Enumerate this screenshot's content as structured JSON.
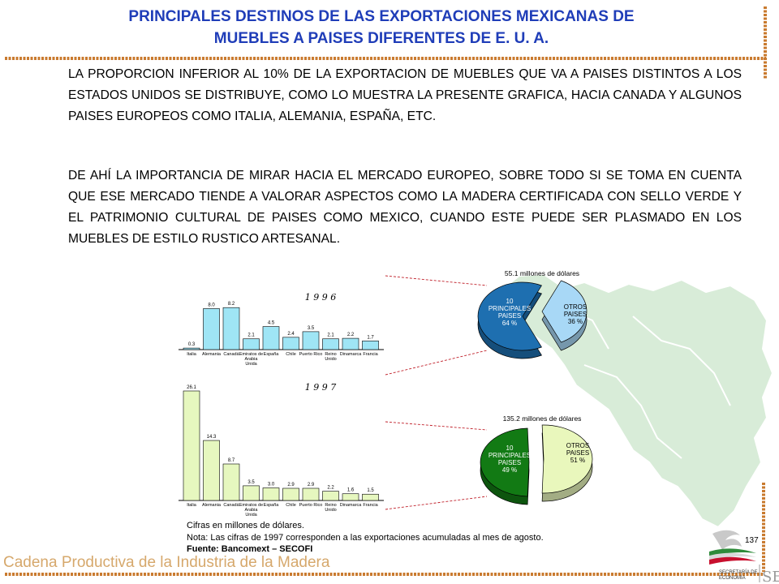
{
  "title": {
    "line1": "PRINCIPALES DESTINOS DE LAS EXPORTACIONES MEXICANAS DE",
    "line2": "MUEBLES A PAISES DIFERENTES DE  E. U. A."
  },
  "paragraphs": {
    "p1": "LA PROPORCION INFERIOR AL 10% DE LA EXPORTACION DE MUEBLES QUE VA A PAISES DISTINTOS A LOS ESTADOS UNIDOS SE DISTRIBUYE, COMO LO MUESTRA LA PRESENTE GRAFICA, HACIA CANADA Y ALGUNOS PAISES EUROPEOS COMO ITALIA, ALEMANIA, ESPAÑA, ETC.",
    "p2": "DE AHÍ LA IMPORTANCIA DE MIRAR HACIA EL MERCADO EUROPEO, SOBRE TODO SI SE TOMA EN CUENTA QUE ESE MERCADO TIENDE A VALORAR ASPECTOS COMO LA MADERA CERTIFICADA CON SELLO VERDE Y EL PATRIMONIO CULTURAL DE PAISES COMO MEXICO, CUANDO ESTE PUEDE SER PLASMADO EN LOS MUEBLES DE ESTILO RUSTICO ARTESANAL."
  },
  "chart_data": [
    {
      "type": "bar",
      "title": "1 9 9 6",
      "categories": [
        "Italia",
        "Alemania",
        "Canadá",
        "Emiratos de Arabia Unida",
        "España",
        "Chile",
        "Puerto Rico",
        "Reino Unido",
        "Dinamarca",
        "Francia"
      ],
      "category_lines": [
        [
          "Italia"
        ],
        [
          "Alemania"
        ],
        [
          "Canadá"
        ],
        [
          "Emiratos de",
          "Arabia",
          "Unida"
        ],
        [
          "España"
        ],
        [
          "Chile"
        ],
        [
          "Puerto Rico"
        ],
        [
          "Reino",
          "Unido"
        ],
        [
          "Dinamarca"
        ],
        [
          "Francia"
        ]
      ],
      "values": [
        0.3,
        8.0,
        8.2,
        2.1,
        4.5,
        2.4,
        3.5,
        2.1,
        2.2,
        1.7
      ],
      "value_labels": [
        "0.3",
        "8.0",
        "8.2",
        "2.1",
        "4.5",
        "2.4",
        "3.5",
        "2.1",
        "2.2",
        "1.7"
      ],
      "ylim": [
        0,
        9.5
      ],
      "bar_color": "#9fe5f5"
    },
    {
      "type": "bar",
      "title": "1 9 9 7",
      "categories": [
        "Italia",
        "Alemania",
        "Canadá",
        "Emiratos de Arabia Unida",
        "España",
        "Chile",
        "Puerto Rico",
        "Reino Unido",
        "Dinamarca",
        "Francia"
      ],
      "category_lines": [
        [
          "Italia"
        ],
        [
          "Alemania"
        ],
        [
          "Canadá"
        ],
        [
          "Emiratos de",
          "Arabia",
          "Unida"
        ],
        [
          "España"
        ],
        [
          "Chile"
        ],
        [
          "Puerto Rico"
        ],
        [
          "Reino",
          "Unido"
        ],
        [
          "Dinamarca"
        ],
        [
          "Francia"
        ]
      ],
      "values": [
        26.1,
        14.3,
        8.7,
        3.5,
        3.0,
        2.9,
        2.9,
        2.2,
        1.6,
        1.5
      ],
      "value_labels": [
        "26.1",
        "14.3",
        "8.7",
        "3.5",
        "3.0",
        "2.9",
        "2.9",
        "2.2",
        "1.6",
        "1.5"
      ],
      "ylim": [
        0,
        26.1
      ],
      "bar_color": "#e6f7bf"
    },
    {
      "type": "pie",
      "title": "55.1 millones de dólares",
      "slices": [
        {
          "label_lines": [
            "10",
            "PRINCIPALES",
            "PAISES",
            "64 %"
          ],
          "value": 64,
          "color": "#1e6fb0"
        },
        {
          "label_lines": [
            "OTROS",
            "PAISES",
            "36 %"
          ],
          "value": 36,
          "color": "#a8d8f6"
        }
      ]
    },
    {
      "type": "pie",
      "title": "135.2 millones de dólares",
      "slices": [
        {
          "label_lines": [
            "10",
            "PRINCIPALES",
            "PAISES",
            "49 %"
          ],
          "value": 49,
          "color": "#127a14"
        },
        {
          "label_lines": [
            "OTROS",
            "PAISES",
            "51 %"
          ],
          "value": 51,
          "color": "#e9f7bc"
        }
      ]
    }
  ],
  "notes": {
    "units": "Cifras en millones de dólares.",
    "note": "Nota: Las cifras de 1997 corresponden a las exportaciones acumuladas al mes de agosto.",
    "source": "Fuente: Bancomext – SECOFI"
  },
  "page_number": "137",
  "footer": "Cadena Productiva de la Industria de la Madera",
  "logo": {
    "text_line1": "SECRETARÍA DE",
    "text_line2": "ECONOMÍA",
    "mark": "SE"
  },
  "colors": {
    "title": "#1f3db8",
    "border": "#c97a2e",
    "footer": "#d6a86c",
    "map": "#d8ecd8"
  }
}
